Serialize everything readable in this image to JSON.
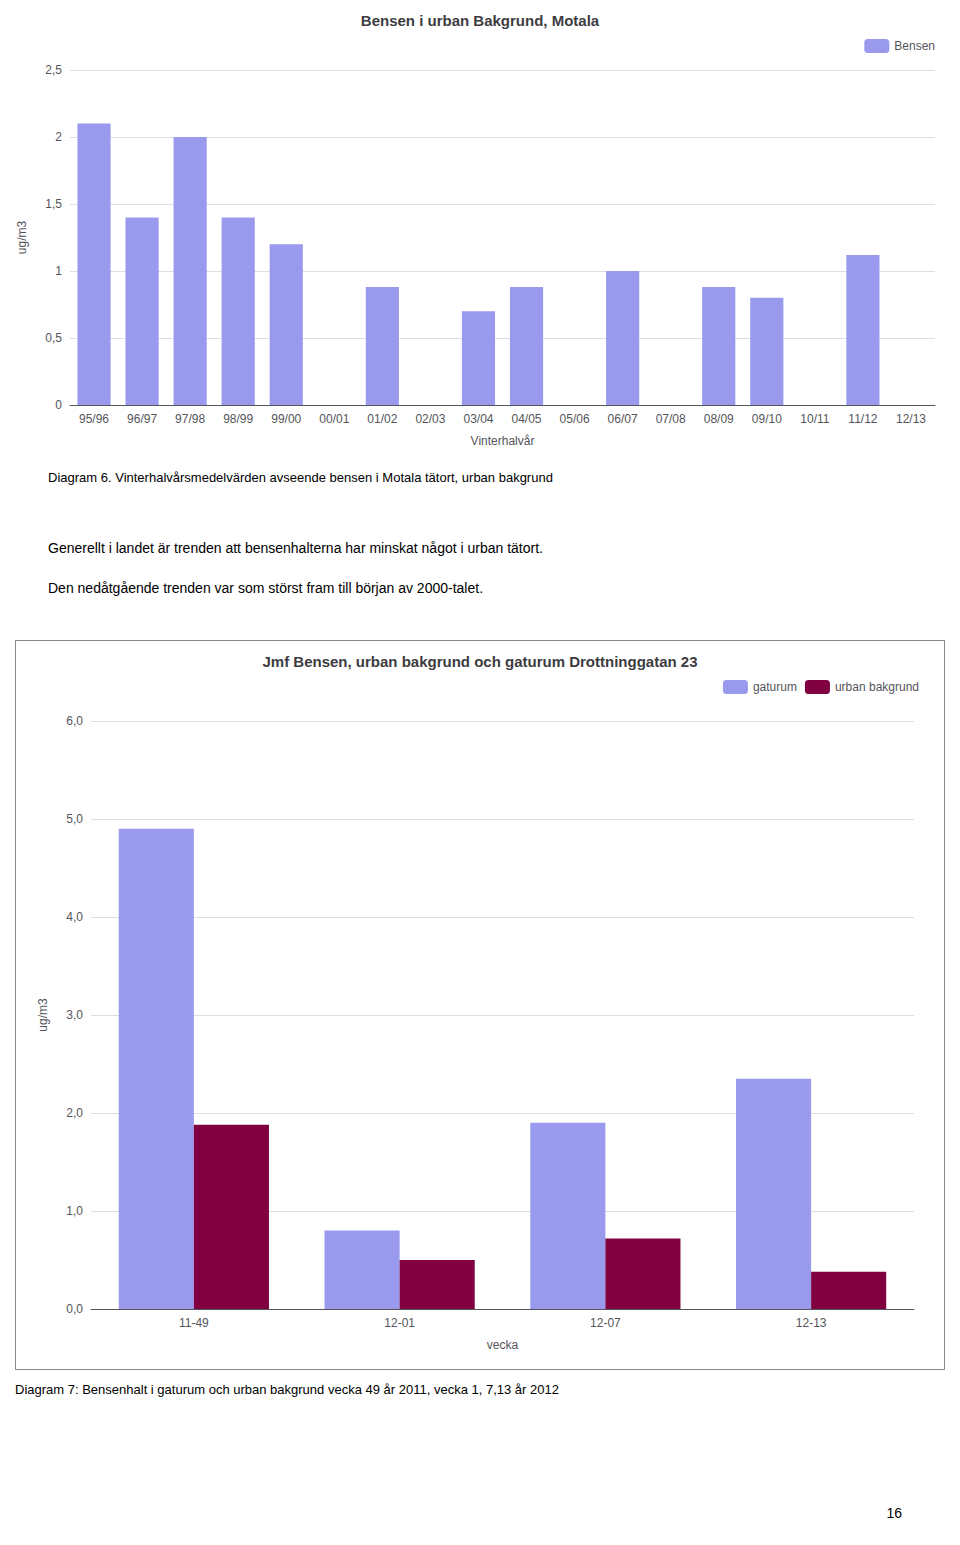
{
  "chart_data": [
    {
      "type": "bar",
      "title": "Bensen i urban Bakgrund, Motala",
      "xlabel": "Vinterhalvår",
      "ylabel": "ug/m3",
      "categories": [
        "95/96",
        "96/97",
        "97/98",
        "98/99",
        "99/00",
        "00/01",
        "01/02",
        "02/03",
        "03/04",
        "04/05",
        "05/06",
        "06/07",
        "07/08",
        "08/09",
        "09/10",
        "10/11",
        "11/12",
        "12/13"
      ],
      "series": [
        {
          "name": "Bensen",
          "color": "#9999ee",
          "values": [
            2.1,
            1.4,
            2.0,
            1.4,
            1.2,
            0.0,
            0.88,
            0.0,
            0.7,
            0.88,
            0.0,
            1.0,
            0.0,
            0.88,
            0.8,
            0.0,
            1.12,
            0.0
          ]
        }
      ],
      "ylim": [
        0,
        2.5
      ],
      "yticks": [
        0,
        {
          "value": 0.5,
          "label": "0,5"
        },
        1,
        {
          "value": 1.5,
          "label": "1,5"
        },
        2,
        {
          "value": 2.5,
          "label": "2,5"
        }
      ],
      "grid": true,
      "legend": "upper right",
      "annotations": [
        "Diagram 6. Vinterhalvårsmedelvärden avseende bensen i Motala tätort, urban bakgrund",
        "Generellt i landet är trenden att bensenhalterna har minskat något i urban tätort.",
        "Den nedåtgående trenden var som störst fram till början av 2000-talet."
      ]
    },
    {
      "type": "bar",
      "title": "Jmf Bensen, urban bakgrund och gaturum Drottninggatan 23",
      "xlabel": "vecka",
      "ylabel": "ug/m3",
      "categories": [
        "11-49",
        "12-01",
        "12-07",
        "12-13"
      ],
      "series": [
        {
          "name": "gaturum",
          "color": "#9999ee",
          "values": [
            4.9,
            0.8,
            1.9,
            2.35
          ]
        },
        {
          "name": "urban bakgrund",
          "color": "#800040",
          "values": [
            1.88,
            0.5,
            0.72,
            0.38
          ]
        }
      ],
      "ylim": [
        0,
        6.0
      ],
      "yticks": [
        {
          "value": 0.0,
          "label": "0,0"
        },
        {
          "value": 1.0,
          "label": "1,0"
        },
        {
          "value": 2.0,
          "label": "2,0"
        },
        {
          "value": 3.0,
          "label": "3,0"
        },
        {
          "value": 4.0,
          "label": "4,0"
        },
        {
          "value": 5.0,
          "label": "5,0"
        },
        {
          "value": 6.0,
          "label": "6,0"
        }
      ],
      "grid": true,
      "legend": "upper right",
      "annotations": [
        "Diagram  7: Bensenhalt i gaturum och urban bakgrund vecka 49 år 2011, vecka 1, 7,13 år 2012",
        "16"
      ]
    }
  ]
}
